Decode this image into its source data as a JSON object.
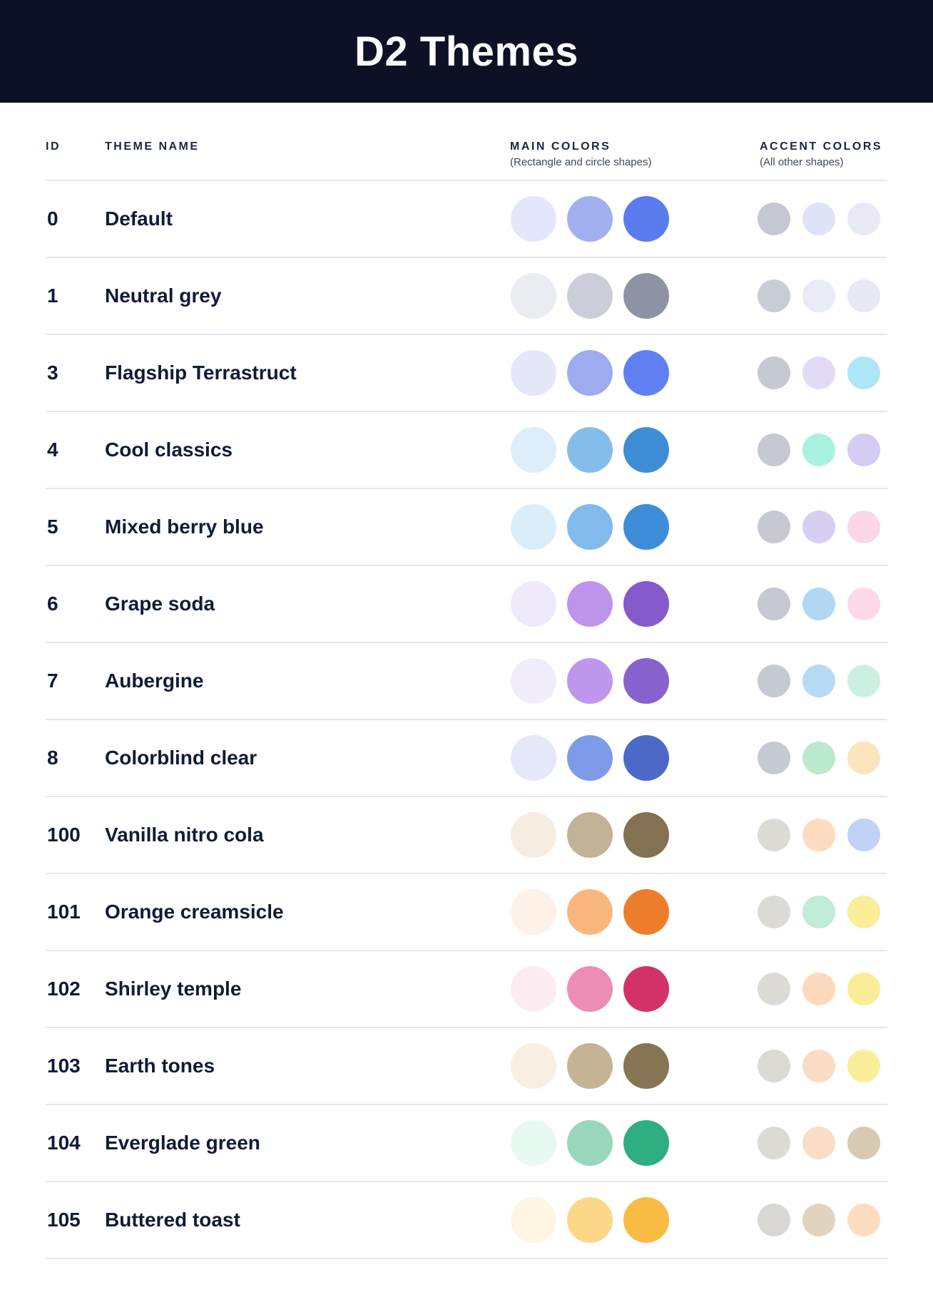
{
  "banner": {
    "title": "D2 Themes",
    "background": "#0C1126",
    "title_color": "#FAFBFD"
  },
  "columns": {
    "id_label": "ID",
    "name_label": "THEME NAME",
    "main_label": "MAIN COLORS",
    "main_subtitle": "(Rectangle and circle shapes)",
    "accent_label": "ACCENT COLORS",
    "accent_subtitle": "(All other shapes)"
  },
  "style_colors": {
    "divider": "#E3E5F0",
    "body_text": "#111B36",
    "header_text": "#1B2540",
    "subtitle_text": "#3F4861"
  },
  "themes": [
    {
      "id": "0",
      "name": "Default",
      "main": [
        "#E4E7FB",
        "#A2B0F0",
        "#5B7CEE"
      ],
      "accent": [
        "#C5C7D2",
        "#DFE3F8",
        "#E7EAF5"
      ]
    },
    {
      "id": "1",
      "name": "Neutral grey",
      "main": [
        "#EAECF2",
        "#CBCED8",
        "#8E93A4"
      ],
      "accent": [
        "#C9CBD5",
        "#E9ECF5",
        "#E6E9F2"
      ]
    },
    {
      "id": "3",
      "name": "Flagship Terrastruct",
      "main": [
        "#E4E7FA",
        "#9DABEF",
        "#6080F2"
      ],
      "accent": [
        "#C6C8D2",
        "#E2DAF7",
        "#ADE6F7"
      ]
    },
    {
      "id": "4",
      "name": "Cool classics",
      "main": [
        "#DDEDFA",
        "#85BDEA",
        "#3E8ED6"
      ],
      "accent": [
        "#C6C8D2",
        "#A9F2E0",
        "#D5CBF3"
      ]
    },
    {
      "id": "5",
      "name": "Mixed berry blue",
      "main": [
        "#DCEDFA",
        "#82BAEB",
        "#3D8DD8"
      ],
      "accent": [
        "#C6C8D2",
        "#D8CEF2",
        "#FBD7E7"
      ]
    },
    {
      "id": "6",
      "name": "Grape soda",
      "main": [
        "#F0E9FA",
        "#BD94E9",
        "#8659CC"
      ],
      "accent": [
        "#C6C8D2",
        "#B2D7F5",
        "#FBD9E9"
      ]
    },
    {
      "id": "7",
      "name": "Aubergine",
      "main": [
        "#F1ECFA",
        "#BE97EC",
        "#8862CC"
      ],
      "accent": [
        "#C6C8D2",
        "#B6D9F4",
        "#CBF0E2"
      ]
    },
    {
      "id": "8",
      "name": "Colorblind clear",
      "main": [
        "#E4E8F8",
        "#7E9BE8",
        "#4C69C8"
      ],
      "accent": [
        "#C7C9D3",
        "#BCE9CD",
        "#FBE5BE"
      ]
    },
    {
      "id": "100",
      "name": "Vanilla nitro cola",
      "main": [
        "#F6EDE2",
        "#C2B296",
        "#837152"
      ],
      "accent": [
        "#DCDAD5",
        "#FCDCC0",
        "#C0D2F6"
      ]
    },
    {
      "id": "101",
      "name": "Orange creamsicle",
      "main": [
        "#FEF1E8",
        "#F9B77E",
        "#ED7D2D"
      ],
      "accent": [
        "#DCDAD5",
        "#BFEBD7",
        "#FAEE99"
      ]
    },
    {
      "id": "102",
      "name": "Shirley temple",
      "main": [
        "#FDEBF2",
        "#EC8DB6",
        "#D23268"
      ],
      "accent": [
        "#DCDAD5",
        "#FCD9BD",
        "#F9EE97"
      ]
    },
    {
      "id": "103",
      "name": "Earth tones",
      "main": [
        "#F8EFE3",
        "#C4B493",
        "#867452"
      ],
      "accent": [
        "#DCDAD5",
        "#FBDCC2",
        "#FAEE9A"
      ]
    },
    {
      "id": "104",
      "name": "Everglade green",
      "main": [
        "#E6FAF0",
        "#98D7BB",
        "#2FAE7F"
      ],
      "accent": [
        "#DCDAD5",
        "#FBDCC4",
        "#D8CAB2"
      ]
    },
    {
      "id": "105",
      "name": "Buttered toast",
      "main": [
        "#FEF5E3",
        "#FCD787",
        "#F8BC44"
      ],
      "accent": [
        "#D9D7D4",
        "#E0D4BF",
        "#FCDCC1"
      ]
    }
  ]
}
